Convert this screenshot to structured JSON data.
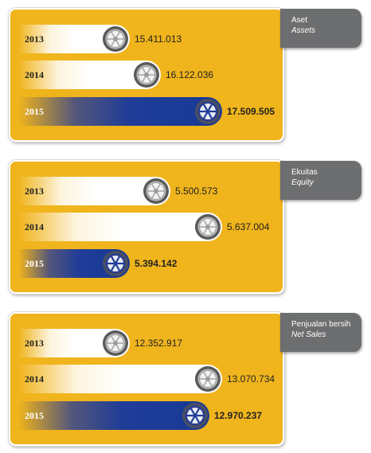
{
  "chart_data": [
    {
      "type": "bar",
      "title": "Aset",
      "subtitle": "Assets",
      "categories": [
        "2013",
        "2014",
        "2015"
      ],
      "values": [
        15411013,
        16122036,
        17509505
      ],
      "value_labels": [
        "15.411.013",
        "16.122.036",
        "17.509.505"
      ],
      "highlight": "2015"
    },
    {
      "type": "bar",
      "title": "Ekuitas",
      "subtitle": "Equity",
      "categories": [
        "2013",
        "2014",
        "2015"
      ],
      "values": [
        5500573,
        5637004,
        5394142
      ],
      "value_labels": [
        "5.500.573",
        "5.637.004",
        "5.394.142"
      ],
      "highlight": "2015"
    },
    {
      "type": "bar",
      "title": "Penjualan bersih",
      "subtitle": "Net Sales",
      "categories": [
        "2013",
        "2014",
        "2015"
      ],
      "values": [
        12352917,
        13070734,
        12970237
      ],
      "value_labels": [
        "12.352.917",
        "13.070.734",
        "12.970.237"
      ],
      "highlight": "2015"
    }
  ],
  "colors": {
    "panel": "#f0b41c",
    "tag": "#6d6e70",
    "bar_prior": "#ffffff",
    "bar_current": "#1f3c98"
  },
  "icons": {
    "bar_end": "wheel-icon"
  }
}
